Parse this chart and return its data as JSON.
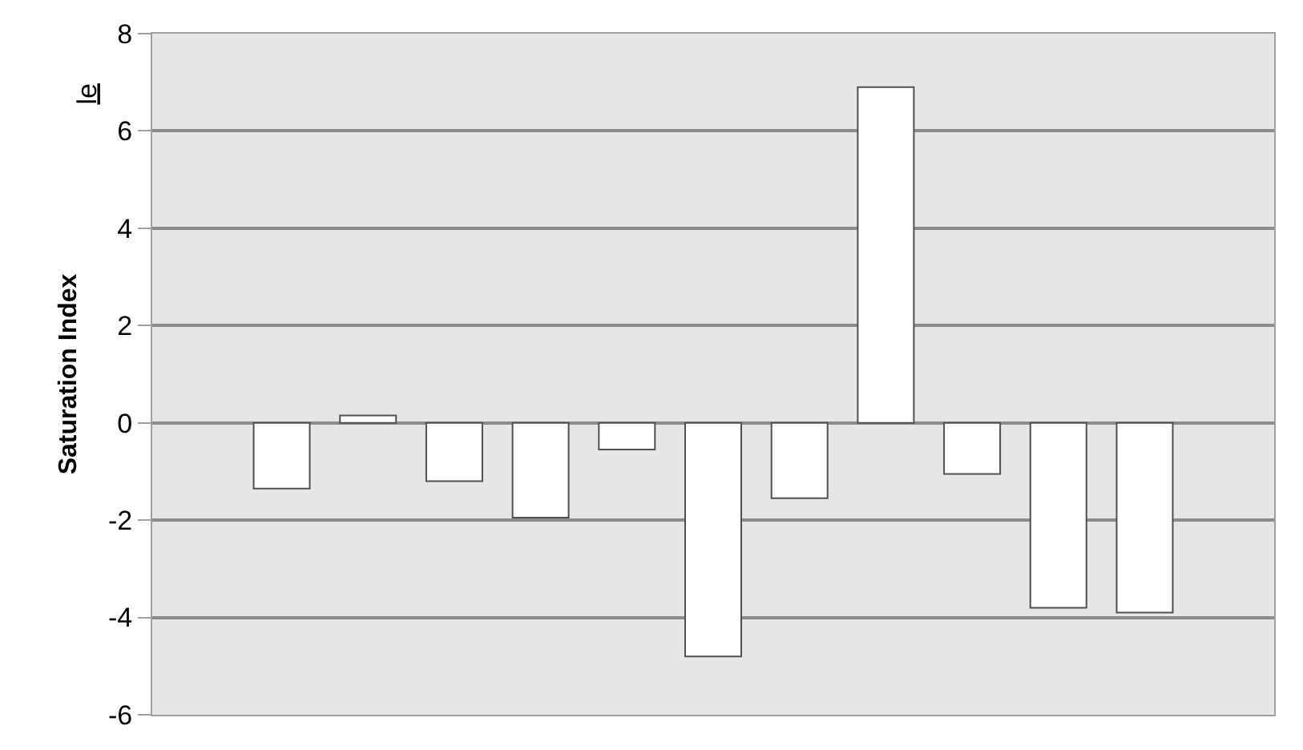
{
  "chart_data": {
    "type": "bar",
    "ylabel": "Saturation Index",
    "annotations": [
      "le"
    ],
    "categories": [
      null,
      null,
      null,
      null,
      null,
      null,
      null,
      null,
      null,
      null,
      null,
      null,
      null
    ],
    "values": [
      null,
      -1.35,
      0.15,
      -1.2,
      -1.95,
      -0.55,
      -4.8,
      -1.55,
      6.9,
      -1.05,
      -3.8,
      -3.9,
      null
    ],
    "color": "#ffffff",
    "ylim": [
      -6,
      8
    ],
    "yticks": [
      -6,
      -4,
      -2,
      0,
      2,
      4,
      6,
      8
    ],
    "grid": "y",
    "legend": false,
    "tick_labels": "y"
  }
}
